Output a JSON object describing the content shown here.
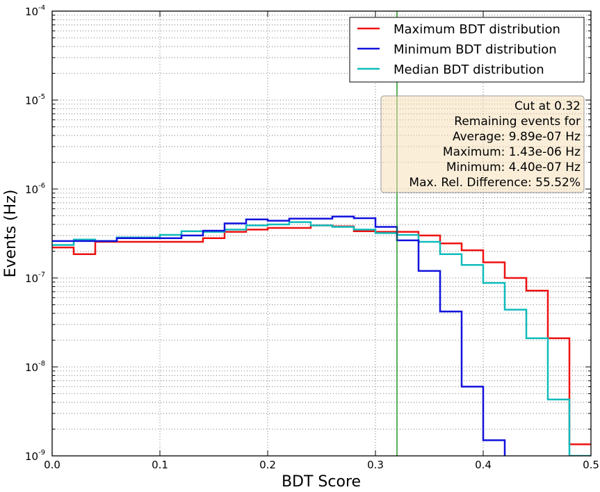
{
  "chart_data": {
    "type": "line",
    "step": true,
    "xlabel": "BDT Score",
    "ylabel": "Events (Hz)",
    "xlim": [
      0.0,
      0.5
    ],
    "ylim": [
      1e-09,
      0.0001
    ],
    "yscale": "log",
    "grid": true,
    "legend_position": "top-right",
    "x_ticks": [
      "0.0",
      "0.1",
      "0.2",
      "0.3",
      "0.4",
      "0.5"
    ],
    "y_ticks": [
      {
        "base": "10",
        "exp": "-9"
      },
      {
        "base": "10",
        "exp": "-8"
      },
      {
        "base": "10",
        "exp": "-7"
      },
      {
        "base": "10",
        "exp": "-6"
      },
      {
        "base": "10",
        "exp": "-5"
      },
      {
        "base": "10",
        "exp": "-4"
      }
    ],
    "bin_edges": [
      0.0,
      0.02,
      0.04,
      0.06,
      0.08,
      0.1,
      0.12,
      0.14,
      0.16,
      0.18,
      0.2,
      0.22,
      0.24,
      0.26,
      0.28,
      0.3,
      0.32,
      0.34,
      0.36,
      0.38,
      0.4,
      0.42,
      0.44,
      0.46,
      0.48,
      0.5
    ],
    "series": [
      {
        "name": "Maximum BDT distribution",
        "color": "#ee1111",
        "values": [
          2.2e-07,
          1.85e-07,
          2.55e-07,
          2.55e-07,
          2.55e-07,
          2.55e-07,
          2.55e-07,
          2.8e-07,
          3.3e-07,
          3.5e-07,
          3.65e-07,
          3.65e-07,
          3.9e-07,
          3.8e-07,
          3.35e-07,
          3.3e-07,
          3.3e-07,
          3e-07,
          2.45e-07,
          2.05e-07,
          1.5e-07,
          1e-07,
          7.2e-08,
          2.1e-08,
          1.35e-09
        ]
      },
      {
        "name": "Minimum BDT distribution",
        "color": "#1111dd",
        "values": [
          2.6e-07,
          2.6e-07,
          2.6e-07,
          2.8e-07,
          2.8e-07,
          2.8e-07,
          3e-07,
          3.4e-07,
          4.1e-07,
          4.55e-07,
          4.4e-07,
          4.65e-07,
          4.65e-07,
          4.9e-07,
          4.7e-07,
          3.75e-07,
          2.65e-07,
          1.2e-07,
          4.2e-08,
          6e-09,
          1.5e-09
        ]
      },
      {
        "name": "Median BDT distribution",
        "color": "#11bbbb",
        "values": [
          2.35e-07,
          2.7e-07,
          2.6e-07,
          2.85e-07,
          2.85e-07,
          3.05e-07,
          3.35e-07,
          3.3e-07,
          3.5e-07,
          3.9e-07,
          4e-07,
          4.25e-07,
          3.9e-07,
          3.75e-07,
          3.5e-07,
          3.2e-07,
          3.05e-07,
          2.55e-07,
          1.85e-07,
          1.4e-07,
          8.8e-08,
          4.4e-08,
          2.1e-08,
          4.3e-09,
          1e-09
        ]
      }
    ],
    "cut": {
      "x": 0.32,
      "color": "#008800"
    },
    "info_box": {
      "lines": [
        "Cut at 0.32",
        "Remaining events for",
        "Average: 9.89e-07 Hz",
        "Maximum: 1.43e-06 Hz",
        "Minimum: 4.40e-07 Hz",
        "Max. Rel. Difference: 55.52%"
      ],
      "fill": "#f5deb3",
      "border": "#999999"
    }
  }
}
